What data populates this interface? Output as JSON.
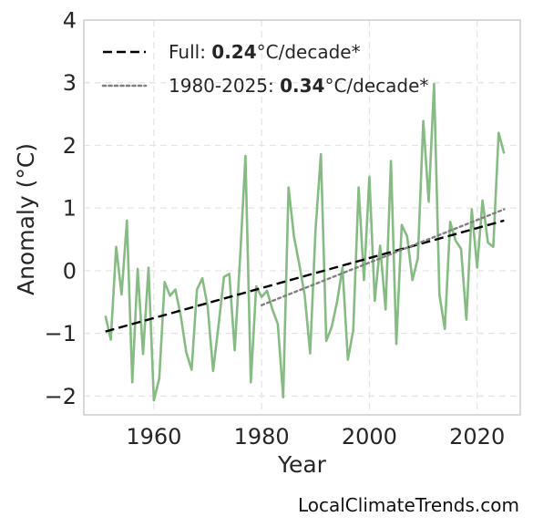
{
  "chart_data": {
    "type": "line",
    "xlabel": "Year",
    "ylabel": "Anomaly (°C)",
    "xlim": [
      1947,
      2028
    ],
    "ylim": [
      -2.3,
      4
    ],
    "x_ticks": [
      1960,
      1980,
      2000,
      2020
    ],
    "y_ticks": [
      -2,
      -1,
      0,
      1,
      2,
      3,
      4
    ],
    "y_tick_labels": [
      "−2",
      "−1",
      "0",
      "1",
      "2",
      "3",
      "4"
    ],
    "grid": true,
    "legend_position": "top-left",
    "series": [
      {
        "name": "",
        "style": "solid",
        "color": "#86bb83",
        "x": [
          1951,
          1952,
          1953,
          1954,
          1955,
          1956,
          1957,
          1958,
          1959,
          1960,
          1961,
          1962,
          1963,
          1964,
          1965,
          1966,
          1967,
          1968,
          1969,
          1970,
          1971,
          1972,
          1973,
          1974,
          1975,
          1976,
          1977,
          1978,
          1979,
          1980,
          1981,
          1982,
          1983,
          1984,
          1985,
          1986,
          1987,
          1988,
          1989,
          1990,
          1991,
          1992,
          1993,
          1994,
          1995,
          1996,
          1997,
          1998,
          1999,
          2000,
          2001,
          2002,
          2003,
          2004,
          2005,
          2006,
          2007,
          2008,
          2009,
          2010,
          2011,
          2012,
          2013,
          2014,
          2015,
          2016,
          2017,
          2018,
          2019,
          2020,
          2021,
          2022,
          2023,
          2024,
          2025
        ],
        "y": [
          -0.72,
          -1.1,
          0.38,
          -0.38,
          0.8,
          -1.78,
          0.03,
          -1.33,
          0.05,
          -2.07,
          -1.72,
          -0.18,
          -0.4,
          -0.3,
          -0.72,
          -1.3,
          -1.58,
          -0.3,
          -0.12,
          -0.58,
          -1.6,
          -0.88,
          -0.1,
          -0.05,
          -1.27,
          0.2,
          1.83,
          -1.78,
          -0.25,
          -0.42,
          -0.32,
          -0.62,
          -0.85,
          -2.02,
          1.33,
          0.55,
          0.1,
          -0.4,
          -1.32,
          0.65,
          1.86,
          -1.12,
          -0.9,
          -0.5,
          0.05,
          -1.42,
          -0.95,
          1.33,
          -0.15,
          1.5,
          -0.48,
          0.4,
          -0.62,
          1.75,
          -1.17,
          0.73,
          0.55,
          -0.15,
          0.2,
          2.39,
          1.1,
          2.98,
          -0.38,
          -0.93,
          0.78,
          0.48,
          0.35,
          -0.78,
          0.98,
          0.05,
          1.12,
          0.45,
          0.38,
          2.2,
          1.87
        ]
      },
      {
        "name": "Full: 0.24°C/decade*",
        "style": "dashed",
        "color": "#000000",
        "x": [
          1951,
          2025
        ],
        "y": [
          -0.97,
          0.8
        ]
      },
      {
        "name": "1980-2025: 0.34°C/decade*",
        "style": "dotted",
        "color": "#808080",
        "x": [
          1980,
          2025
        ],
        "y": [
          -0.55,
          0.98
        ]
      }
    ],
    "legend": [
      {
        "prefix": "Full: ",
        "value": "0.24",
        "suffix": "°C/decade*",
        "style": "dashed",
        "color": "#000000"
      },
      {
        "prefix": "1980-2025: ",
        "value": "0.34",
        "suffix": "°C/decade*",
        "style": "dotted",
        "color": "#808080"
      }
    ]
  },
  "source": "LocalClimateTrends.com"
}
